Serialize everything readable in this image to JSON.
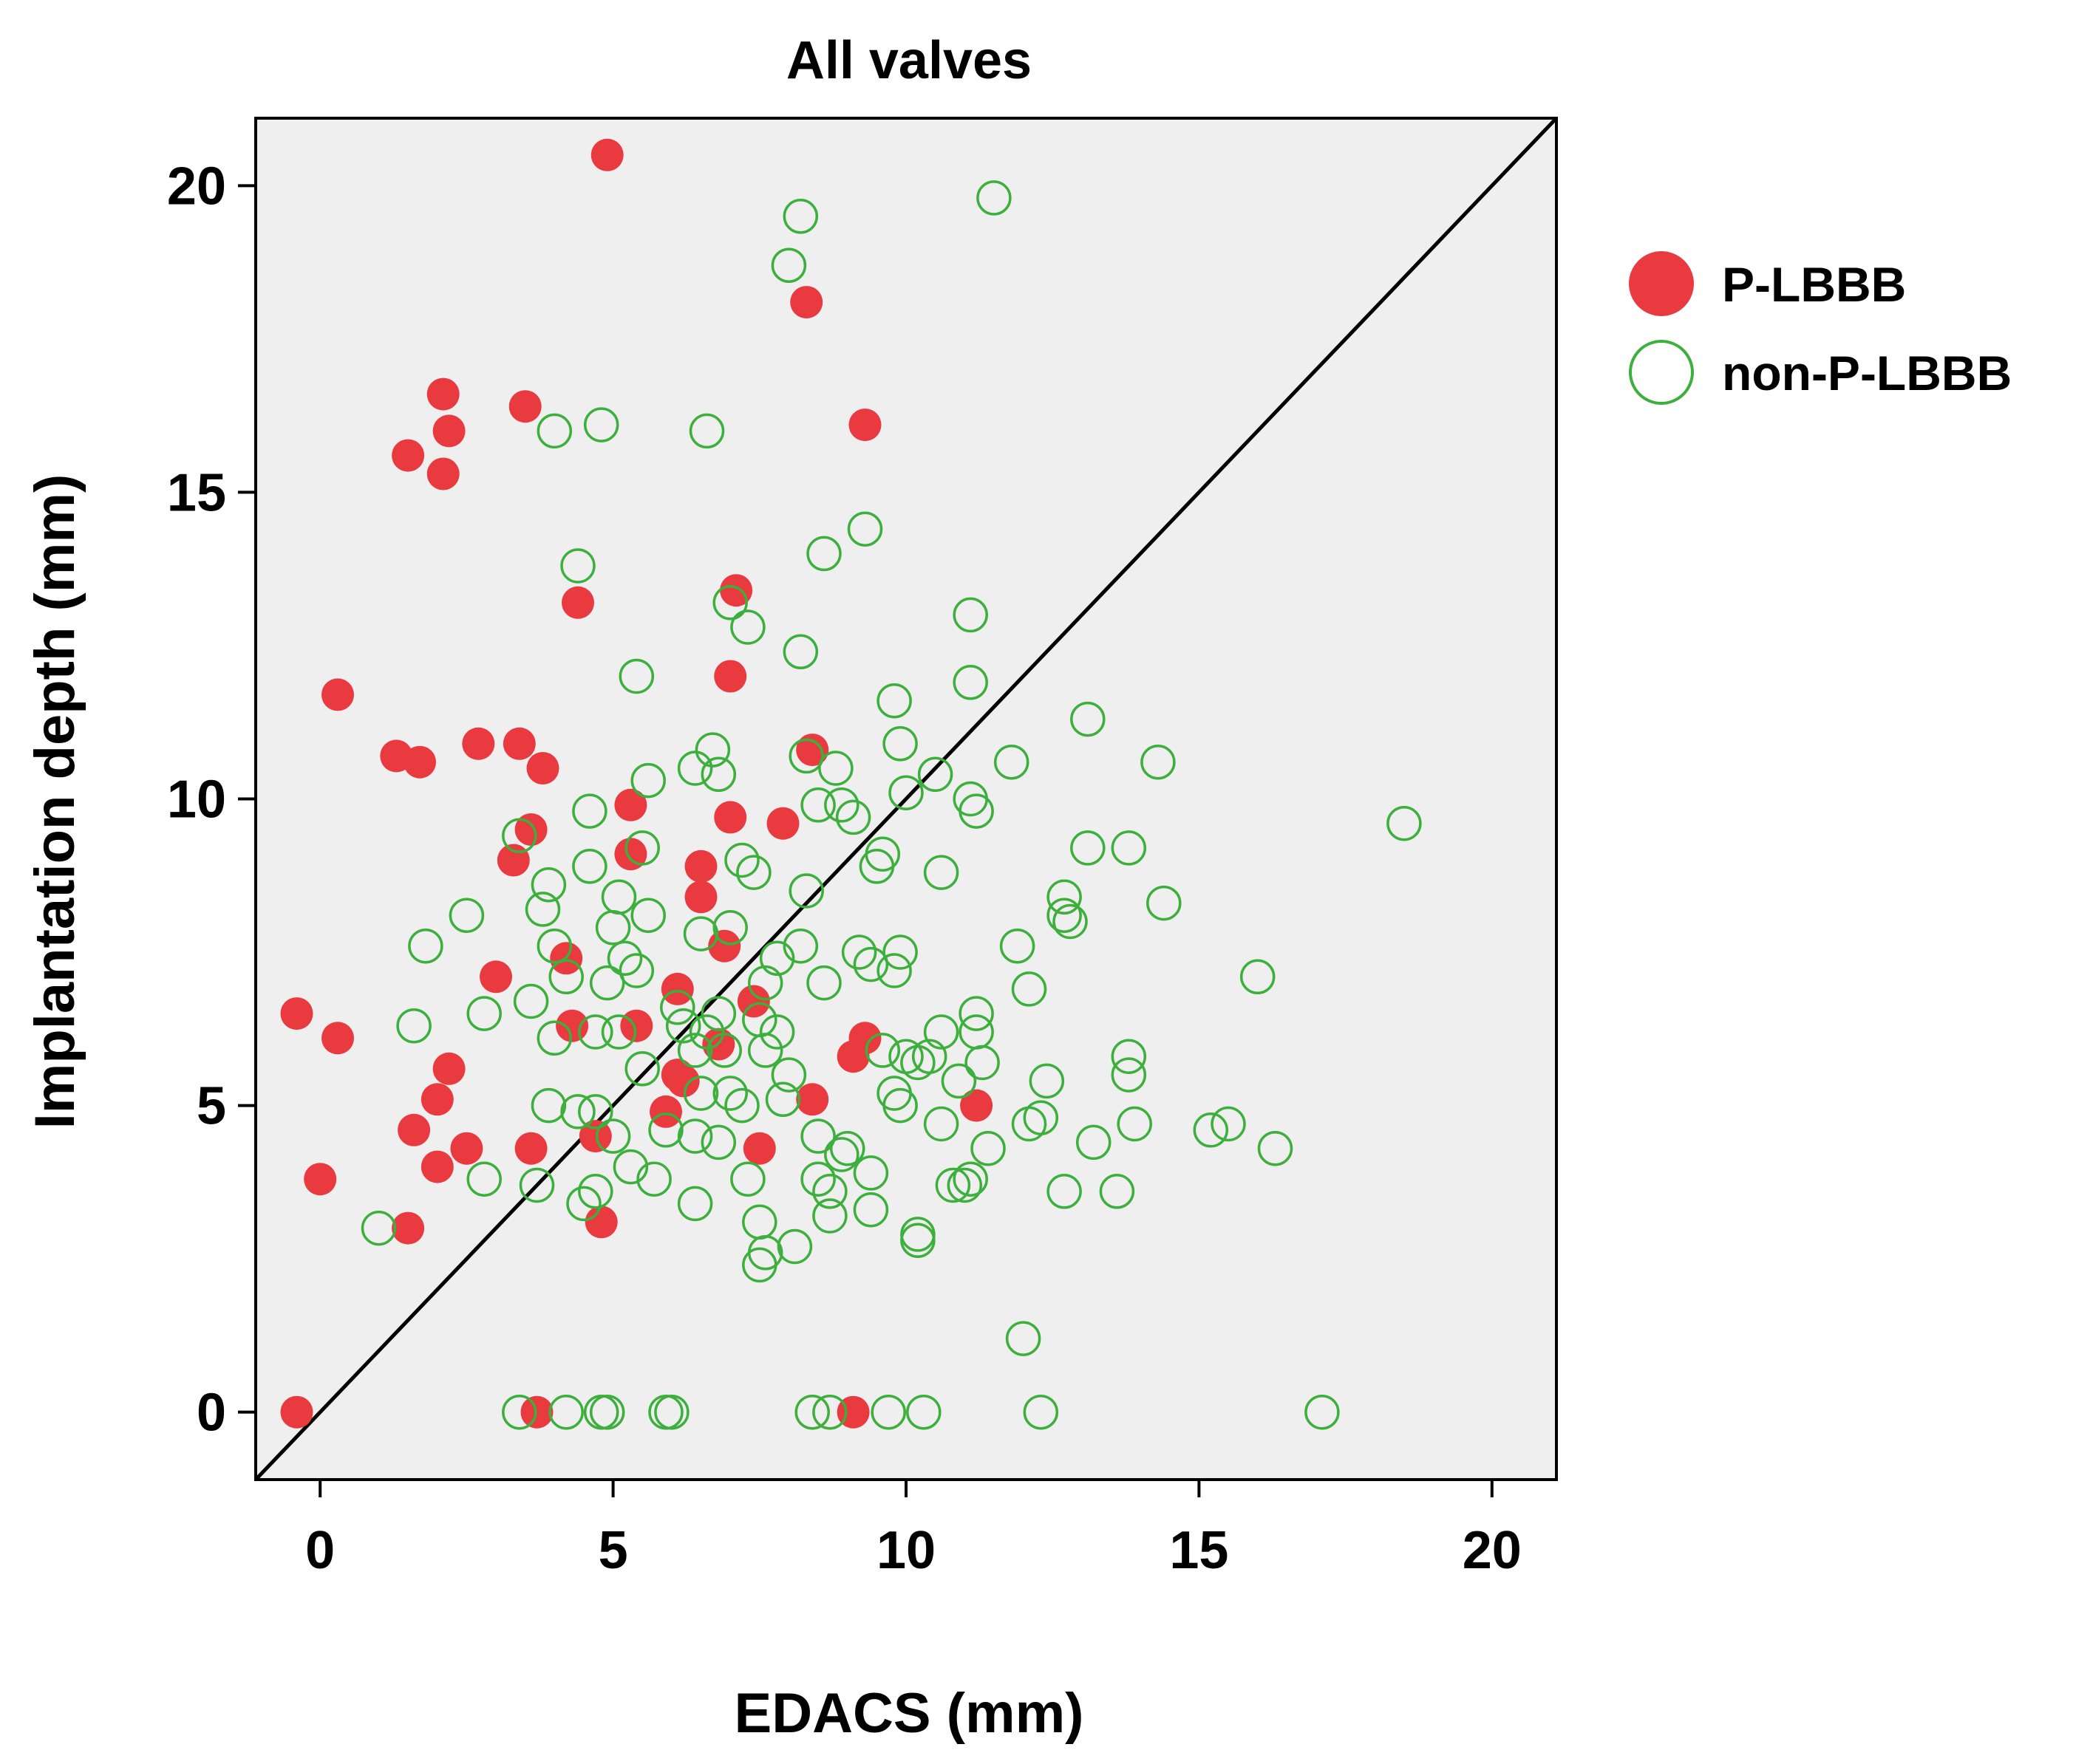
{
  "chart_data": {
    "type": "scatter",
    "title": "All valves",
    "xlabel": "EDACS (mm)",
    "ylabel": "Implantation depth (mm)",
    "xlim": [
      -1.1,
      21.1
    ],
    "ylim": [
      -1.1,
      21.1
    ],
    "xticks": [
      0,
      5,
      10,
      15,
      20
    ],
    "yticks": [
      0,
      5,
      10,
      15,
      20
    ],
    "background": "#efefef",
    "reference_line": "y = x",
    "legend_position": "right",
    "series": [
      {
        "name": "P-LBBB",
        "marker": "filled-circle",
        "color": "#e83a3f",
        "points": [
          [
            4.9,
            20.5
          ],
          [
            8.3,
            18.1
          ],
          [
            2.1,
            16.6
          ],
          [
            3.5,
            16.4
          ],
          [
            2.2,
            16.0
          ],
          [
            9.3,
            16.1
          ],
          [
            1.5,
            15.6
          ],
          [
            2.1,
            15.3
          ],
          [
            7.1,
            13.4
          ],
          [
            4.4,
            13.2
          ],
          [
            7.0,
            12.0
          ],
          [
            0.3,
            11.7
          ],
          [
            2.7,
            10.9
          ],
          [
            3.4,
            10.9
          ],
          [
            1.3,
            10.7
          ],
          [
            1.7,
            10.6
          ],
          [
            8.4,
            10.8
          ],
          [
            3.8,
            10.5
          ],
          [
            5.3,
            9.9
          ],
          [
            7.0,
            9.7
          ],
          [
            7.9,
            9.6
          ],
          [
            3.6,
            9.5
          ],
          [
            5.3,
            9.1
          ],
          [
            3.3,
            9.0
          ],
          [
            6.5,
            8.9
          ],
          [
            6.5,
            8.4
          ],
          [
            6.9,
            7.6
          ],
          [
            4.2,
            7.4
          ],
          [
            3.0,
            7.1
          ],
          [
            6.1,
            6.9
          ],
          [
            7.4,
            6.7
          ],
          [
            -0.4,
            6.5
          ],
          [
            4.3,
            6.3
          ],
          [
            5.4,
            6.3
          ],
          [
            0.3,
            6.1
          ],
          [
            9.3,
            6.1
          ],
          [
            6.8,
            6.0
          ],
          [
            9.1,
            5.8
          ],
          [
            2.2,
            5.6
          ],
          [
            6.1,
            5.5
          ],
          [
            6.2,
            5.4
          ],
          [
            2.0,
            5.1
          ],
          [
            8.4,
            5.1
          ],
          [
            11.2,
            5.0
          ],
          [
            5.9,
            4.9
          ],
          [
            1.6,
            4.6
          ],
          [
            4.7,
            4.5
          ],
          [
            2.5,
            4.3
          ],
          [
            3.6,
            4.3
          ],
          [
            7.5,
            4.3
          ],
          [
            2.0,
            4.0
          ],
          [
            0.0,
            3.8
          ],
          [
            4.8,
            3.1
          ],
          [
            1.5,
            3.0
          ],
          [
            -0.4,
            0.0
          ],
          [
            3.7,
            0.0
          ],
          [
            9.1,
            0.0
          ]
        ]
      },
      {
        "name": "non-P-LBBB",
        "marker": "open-circle",
        "color": "#3caf3c",
        "points": [
          [
            11.5,
            19.8
          ],
          [
            8.2,
            19.5
          ],
          [
            8.0,
            18.7
          ],
          [
            4.0,
            16.0
          ],
          [
            4.8,
            16.1
          ],
          [
            6.6,
            16.0
          ],
          [
            9.3,
            14.4
          ],
          [
            8.6,
            14.0
          ],
          [
            4.4,
            13.8
          ],
          [
            7.0,
            13.2
          ],
          [
            7.3,
            12.8
          ],
          [
            11.1,
            13.0
          ],
          [
            8.2,
            12.4
          ],
          [
            5.4,
            12.0
          ],
          [
            11.1,
            11.9
          ],
          [
            9.8,
            11.6
          ],
          [
            13.1,
            11.3
          ],
          [
            9.9,
            10.9
          ],
          [
            6.7,
            10.8
          ],
          [
            6.8,
            10.4
          ],
          [
            6.4,
            10.5
          ],
          [
            5.6,
            10.3
          ],
          [
            8.3,
            10.7
          ],
          [
            8.8,
            10.5
          ],
          [
            10.5,
            10.4
          ],
          [
            11.8,
            10.6
          ],
          [
            14.3,
            10.6
          ],
          [
            10.0,
            10.1
          ],
          [
            11.1,
            10.0
          ],
          [
            11.2,
            9.8
          ],
          [
            8.5,
            9.9
          ],
          [
            8.9,
            9.9
          ],
          [
            9.1,
            9.7
          ],
          [
            4.6,
            9.8
          ],
          [
            18.5,
            9.6
          ],
          [
            3.4,
            9.4
          ],
          [
            5.5,
            9.2
          ],
          [
            7.2,
            9.0
          ],
          [
            9.6,
            9.1
          ],
          [
            9.5,
            8.9
          ],
          [
            13.1,
            9.2
          ],
          [
            13.8,
            9.2
          ],
          [
            7.4,
            8.8
          ],
          [
            3.9,
            8.6
          ],
          [
            4.6,
            8.9
          ],
          [
            5.1,
            8.4
          ],
          [
            8.3,
            8.5
          ],
          [
            10.6,
            8.8
          ],
          [
            12.7,
            8.4
          ],
          [
            12.7,
            8.1
          ],
          [
            12.8,
            8.0
          ],
          [
            14.4,
            8.3
          ],
          [
            2.5,
            8.1
          ],
          [
            3.8,
            8.2
          ],
          [
            5.6,
            8.1
          ],
          [
            5.0,
            7.9
          ],
          [
            7.0,
            7.9
          ],
          [
            6.5,
            7.8
          ],
          [
            1.8,
            7.6
          ],
          [
            4.0,
            7.6
          ],
          [
            7.8,
            7.4
          ],
          [
            8.2,
            7.6
          ],
          [
            9.2,
            7.5
          ],
          [
            9.4,
            7.3
          ],
          [
            9.9,
            7.5
          ],
          [
            9.8,
            7.2
          ],
          [
            11.9,
            7.6
          ],
          [
            4.2,
            7.1
          ],
          [
            4.9,
            7.0
          ],
          [
            5.2,
            7.4
          ],
          [
            5.4,
            7.2
          ],
          [
            7.6,
            7.0
          ],
          [
            8.6,
            7.0
          ],
          [
            12.1,
            6.9
          ],
          [
            16.0,
            7.1
          ],
          [
            3.6,
            6.7
          ],
          [
            2.8,
            6.5
          ],
          [
            6.1,
            6.6
          ],
          [
            6.8,
            6.5
          ],
          [
            7.5,
            6.4
          ],
          [
            1.6,
            6.3
          ],
          [
            4.0,
            6.1
          ],
          [
            4.7,
            6.2
          ],
          [
            5.1,
            6.2
          ],
          [
            6.2,
            6.3
          ],
          [
            6.6,
            6.2
          ],
          [
            7.8,
            6.2
          ],
          [
            9.6,
            5.9
          ],
          [
            10.0,
            5.8
          ],
          [
            10.2,
            5.7
          ],
          [
            10.4,
            5.8
          ],
          [
            10.6,
            6.2
          ],
          [
            11.2,
            6.2
          ],
          [
            11.2,
            6.5
          ],
          [
            11.3,
            5.7
          ],
          [
            13.8,
            5.8
          ],
          [
            13.8,
            5.5
          ],
          [
            5.5,
            5.6
          ],
          [
            6.4,
            5.9
          ],
          [
            6.9,
            5.9
          ],
          [
            7.6,
            5.9
          ],
          [
            8.0,
            5.5
          ],
          [
            9.8,
            5.2
          ],
          [
            9.9,
            5.0
          ],
          [
            10.9,
            5.4
          ],
          [
            12.4,
            5.4
          ],
          [
            6.5,
            5.2
          ],
          [
            7.0,
            5.2
          ],
          [
            7.2,
            5.0
          ],
          [
            7.9,
            5.1
          ],
          [
            3.9,
            5.0
          ],
          [
            4.4,
            4.9
          ],
          [
            4.7,
            4.9
          ],
          [
            5.0,
            4.5
          ],
          [
            5.9,
            4.6
          ],
          [
            6.4,
            4.5
          ],
          [
            6.8,
            4.4
          ],
          [
            8.5,
            4.5
          ],
          [
            10.6,
            4.7
          ],
          [
            12.1,
            4.7
          ],
          [
            12.3,
            4.8
          ],
          [
            13.9,
            4.7
          ],
          [
            15.2,
            4.6
          ],
          [
            15.5,
            4.7
          ],
          [
            8.9,
            4.2
          ],
          [
            9.0,
            4.3
          ],
          [
            11.4,
            4.3
          ],
          [
            13.2,
            4.4
          ],
          [
            16.3,
            4.3
          ],
          [
            5.3,
            4.0
          ],
          [
            5.7,
            3.8
          ],
          [
            7.3,
            3.8
          ],
          [
            8.5,
            3.8
          ],
          [
            8.7,
            3.6
          ],
          [
            9.4,
            3.9
          ],
          [
            10.8,
            3.7
          ],
          [
            11.1,
            3.8
          ],
          [
            11.0,
            3.7
          ],
          [
            12.7,
            3.6
          ],
          [
            13.6,
            3.6
          ],
          [
            2.8,
            3.8
          ],
          [
            3.7,
            3.7
          ],
          [
            4.7,
            3.6
          ],
          [
            4.5,
            3.4
          ],
          [
            6.4,
            3.4
          ],
          [
            8.7,
            3.2
          ],
          [
            9.4,
            3.3
          ],
          [
            7.5,
            3.1
          ],
          [
            10.2,
            2.9
          ],
          [
            10.2,
            2.8
          ],
          [
            1.0,
            3.0
          ],
          [
            7.5,
            2.4
          ],
          [
            7.6,
            2.6
          ],
          [
            8.1,
            2.7
          ],
          [
            12.0,
            1.2
          ],
          [
            3.4,
            0.0
          ],
          [
            4.2,
            0.0
          ],
          [
            4.8,
            0.0
          ],
          [
            4.9,
            0.0
          ],
          [
            5.9,
            0.0
          ],
          [
            6.0,
            0.0
          ],
          [
            8.4,
            0.0
          ],
          [
            8.7,
            0.0
          ],
          [
            9.7,
            0.0
          ],
          [
            10.3,
            0.0
          ],
          [
            12.3,
            0.0
          ],
          [
            17.1,
            0.0
          ]
        ]
      }
    ]
  }
}
